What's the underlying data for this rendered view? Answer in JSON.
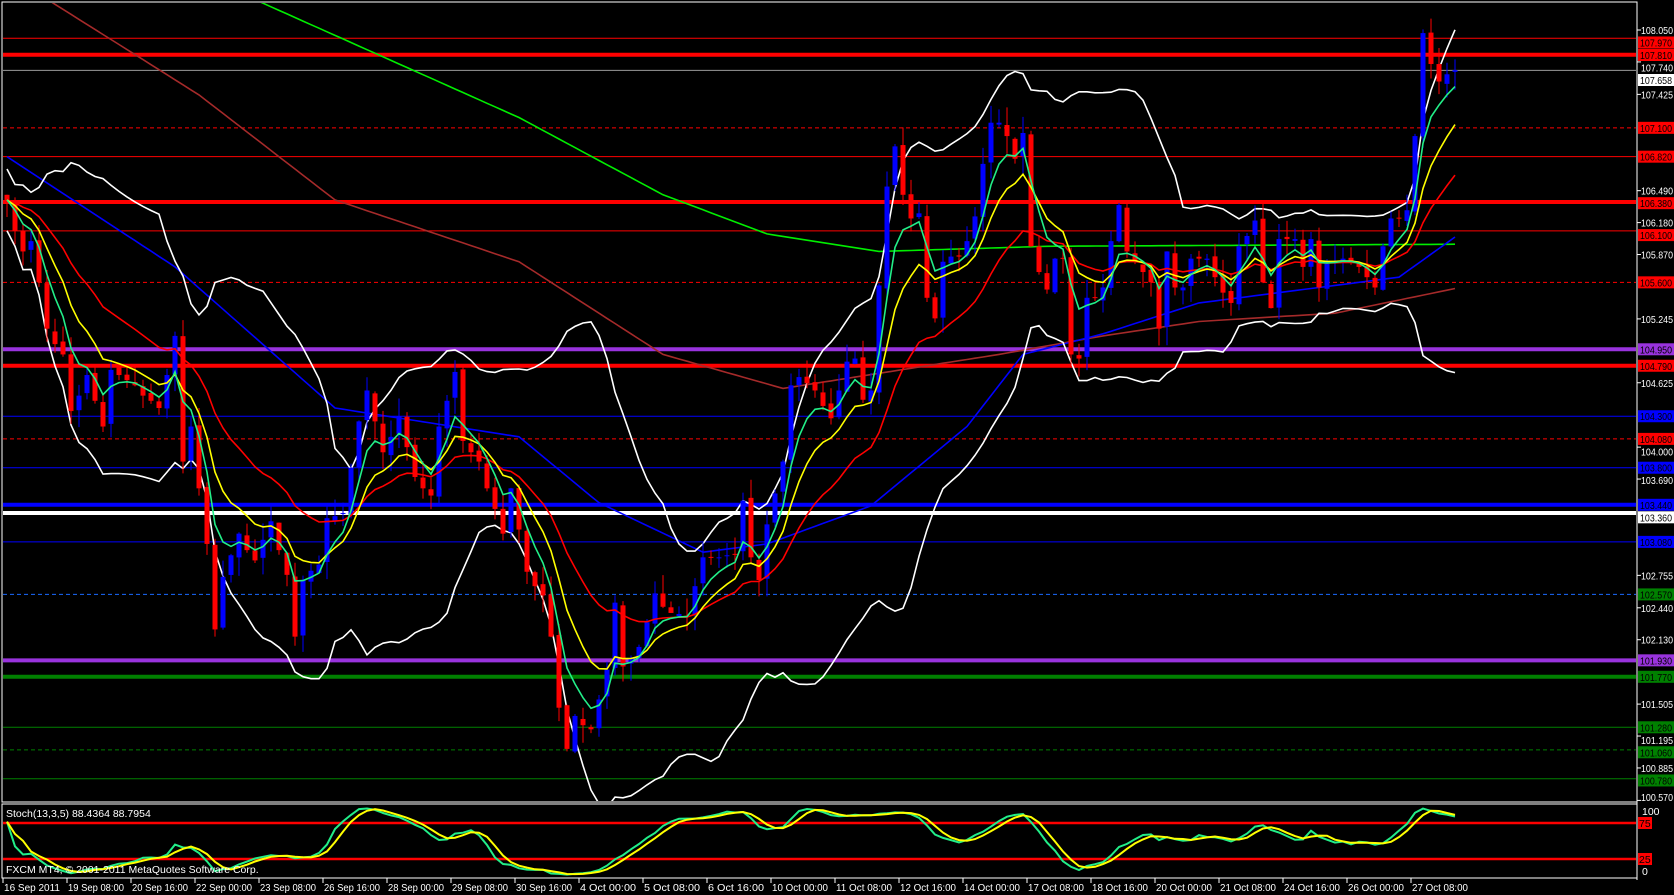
{
  "chart_data": {
    "type": "candlestick",
    "timeframe_bar_hours": 4,
    "price_axis": {
      "range": [
        100.57,
        108.05
      ],
      "ticks": [
        "108.050",
        "107.740",
        "107.425",
        "106.490",
        "106.180",
        "105.870",
        "105.245",
        "104.625",
        "104.000",
        "103.690",
        "102.755",
        "102.440",
        "102.130",
        "101.505",
        "101.195",
        "100.885",
        "100.570"
      ]
    },
    "time_axis": {
      "labels": [
        "16 Sep 2011",
        "19 Sep 08:00",
        "20 Sep 16:00",
        "22 Sep 00:00",
        "23 Sep 08:00",
        "26 Sep 16:00",
        "28 Sep 00:00",
        "29 Sep 08:00",
        "30 Sep 16:00",
        "4 Oct 00:00",
        "5 Oct 08:00",
        "6 Oct 16:00",
        "10 Oct 00:00",
        "11 Oct 08:00",
        "12 Oct 16:00",
        "14 Oct 00:00",
        "17 Oct 08:00",
        "18 Oct 16:00",
        "20 Oct 00:00",
        "21 Oct 08:00",
        "24 Oct 16:00",
        "26 Oct 00:00",
        "27 Oct 08:00"
      ],
      "bars_per_label": 8
    },
    "closes": [
      106.4,
      106.1,
      105.9,
      106.0,
      105.6,
      105.15,
      105.0,
      104.9,
      104.35,
      104.5,
      104.7,
      104.45,
      104.2,
      104.75,
      104.7,
      104.65,
      104.6,
      104.5,
      104.45,
      104.38,
      104.7,
      105.08,
      103.86,
      104.2,
      103.6,
      103.06,
      102.23,
      102.74,
      102.95,
      103.16,
      103.0,
      102.9,
      103.1,
      103.28,
      103.0,
      102.76,
      102.16,
      102.71,
      102.8,
      102.86,
      103.31,
      103.33,
      103.36,
      103.8,
      104.25,
      104.55,
      104.25,
      103.95,
      104.1,
      104.3,
      104.0,
      103.71,
      103.6,
      103.53,
      104.2,
      104.45,
      104.73,
      104.06,
      103.95,
      103.86,
      103.6,
      103.4,
      103.16,
      103.6,
      103.2,
      102.79,
      102.65,
      102.56,
      102.16,
      101.47,
      101.07,
      101.39,
      101.3,
      101.26,
      101.55,
      101.84,
      102.49,
      101.87,
      101.95,
      102.06,
      102.3,
      102.58,
      102.45,
      102.39,
      102.38,
      102.36,
      102.65,
      102.93,
      102.93,
      102.93,
      102.95,
      102.96,
      103.48,
      102.93,
      102.71,
      103.25,
      103.55,
      103.86,
      104.6,
      104.68,
      104.62,
      104.55,
      104.4,
      104.28,
      104.55,
      104.83,
      104.86,
      104.46,
      104.55,
      105.57,
      106.53,
      106.92,
      106.45,
      106.22,
      106.27,
      105.45,
      105.25,
      105.8,
      105.85,
      105.85,
      106.0,
      106.24,
      106.75,
      107.15,
      107.15,
      107.02,
      106.8,
      107.05,
      105.95,
      105.7,
      105.53,
      105.83,
      105.83,
      104.9,
      104.86,
      105.45,
      105.45,
      105.55,
      106.0,
      106.35,
      105.9,
      105.8,
      105.7,
      105.6,
      105.15,
      105.9,
      105.55,
      105.55,
      105.83,
      105.83,
      105.83,
      105.65,
      105.5,
      105.4,
      105.95,
      106.05,
      106.2,
      105.6,
      105.35,
      106.02,
      106.02,
      106.02,
      105.75,
      106.02,
      105.55,
      105.78,
      105.8,
      105.83,
      105.8,
      105.75,
      105.65,
      105.55,
      105.95,
      106.22,
      106.22,
      106.3,
      107.02,
      108.02,
      107.72,
      107.55,
      107.62,
      107.66
    ],
    "bull_color": "#0000ff",
    "bear_color": "#ff0000",
    "long_mas": [
      {
        "color": "#00ee00",
        "points": [
          [
            0,
            109.4
          ],
          [
            32,
            108.31
          ],
          [
            64,
            107.2
          ],
          [
            82,
            106.45
          ],
          [
            95,
            106.07
          ],
          [
            109,
            105.9
          ],
          [
            130,
            105.95
          ],
          [
            181,
            105.97
          ]
        ]
      },
      {
        "color": "#a52a2a",
        "points": [
          [
            0,
            108.6
          ],
          [
            6,
            108.3
          ],
          [
            24,
            107.42
          ],
          [
            41,
            106.4
          ],
          [
            64,
            105.8
          ],
          [
            82,
            104.9
          ],
          [
            97,
            104.57
          ],
          [
            124,
            104.9
          ],
          [
            137,
            105.08
          ],
          [
            149,
            105.22
          ],
          [
            166,
            105.3
          ],
          [
            181,
            105.54
          ]
        ]
      },
      {
        "color": "#0000ff",
        "points": [
          [
            0,
            106.82
          ],
          [
            21,
            105.75
          ],
          [
            41,
            104.38
          ],
          [
            64,
            104.1
          ],
          [
            74,
            103.46
          ],
          [
            87,
            102.98
          ],
          [
            95,
            103.06
          ],
          [
            108,
            103.43
          ],
          [
            120,
            104.2
          ],
          [
            127,
            104.9
          ],
          [
            137,
            105.1
          ],
          [
            149,
            105.4
          ],
          [
            166,
            105.57
          ],
          [
            174,
            105.65
          ],
          [
            181,
            106.04
          ]
        ]
      }
    ],
    "emas": [
      {
        "period": 21,
        "color": "#ff0000"
      },
      {
        "period": 10,
        "color": "#ffff00"
      },
      {
        "period": 5,
        "color": "#22ee88"
      }
    ],
    "bollinger": {
      "period": 20,
      "deviation": 2,
      "color": "#ffffff"
    },
    "levels": [
      {
        "price": 107.97,
        "label": "107.970",
        "color": "#ff0000",
        "style": "thin",
        "text_color": "#000000"
      },
      {
        "price": 107.81,
        "label": "107.810",
        "color": "#ff0000",
        "style": "thick",
        "text_color": "#000000"
      },
      {
        "price": 107.658,
        "label": "107.658",
        "color": "#9a9a9a",
        "style": "thin",
        "box_color": "#ffffff",
        "text_color": "#000000"
      },
      {
        "price": 107.1,
        "label": "107.100",
        "color": "#ff0000",
        "style": "dashed",
        "text_color": "#000000"
      },
      {
        "price": 106.82,
        "label": "106.820",
        "color": "#ff0000",
        "style": "thin",
        "text_color": "#000000"
      },
      {
        "price": 106.38,
        "label": "106.380",
        "color": "#ff0000",
        "style": "thick",
        "text_color": "#000000"
      },
      {
        "price": 106.1,
        "label": "106.100",
        "color": "#ff0000",
        "style": "thin",
        "text_color": "#000000"
      },
      {
        "price": 105.6,
        "label": "105.600",
        "color": "#ff0000",
        "style": "dashed",
        "text_color": "#000000"
      },
      {
        "price": 104.95,
        "label": "104.950",
        "color": "#9933dd",
        "style": "thick",
        "text_color": "#000000"
      },
      {
        "price": 104.79,
        "label": "104.790",
        "color": "#ff0000",
        "style": "thick",
        "text_color": "#000000"
      },
      {
        "price": 104.3,
        "label": "104.300",
        "color": "#0000ff",
        "style": "thin",
        "text_color": "#000000"
      },
      {
        "price": 104.08,
        "label": "104.080",
        "color": "#ff0000",
        "style": "dashed",
        "text_color": "#000000"
      },
      {
        "price": 103.8,
        "label": "103.800",
        "color": "#0000ff",
        "style": "thin",
        "text_color": "#000000"
      },
      {
        "price": 103.44,
        "label": "103.440",
        "color": "#0000ff",
        "style": "thick",
        "text_color": "#000000"
      },
      {
        "price": 103.36,
        "label": "103.360",
        "color": "#ffffff",
        "style": "thick",
        "text_color": "#000000"
      },
      {
        "price": 103.08,
        "label": "103.080",
        "color": "#0000ff",
        "style": "thin",
        "text_color": "#000000"
      },
      {
        "price": 102.57,
        "label": "102.570",
        "color": "#1a6aff",
        "style": "dashed",
        "box_color": "#008000",
        "text_color": "#000000"
      },
      {
        "price": 101.93,
        "label": "101.930",
        "color": "#9933dd",
        "style": "thick",
        "text_color": "#000000"
      },
      {
        "price": 101.77,
        "label": "101.770",
        "color": "#008000",
        "style": "thick",
        "text_color": "#000000"
      },
      {
        "price": 101.28,
        "label": "101.280",
        "color": "#008000",
        "style": "thin",
        "text_color": "#000000"
      },
      {
        "price": 101.06,
        "label": "101.060",
        "color": "#008000",
        "style": "dashed",
        "text_color": "#000000"
      },
      {
        "price": 100.78,
        "label": "100.780",
        "color": "#008000",
        "style": "thin",
        "text_color": "#000000"
      }
    ]
  },
  "stochastic": {
    "header": "Stoch(13,3,5) 88.4364 88.7954",
    "k_period": 13,
    "d_period": 3,
    "slowing": 5,
    "main_color": "#22ee88",
    "signal_color": "#ffff00",
    "levels": [
      {
        "value": 75,
        "label": "75"
      },
      {
        "value": 25,
        "label": "25"
      }
    ],
    "axis_labels": [
      {
        "value": 100,
        "label": "100"
      },
      {
        "value": 0,
        "label": "0"
      }
    ]
  },
  "footer": {
    "copyright": "FXCM MT4, © 2001-2011 MetaQuotes Software Corp."
  }
}
